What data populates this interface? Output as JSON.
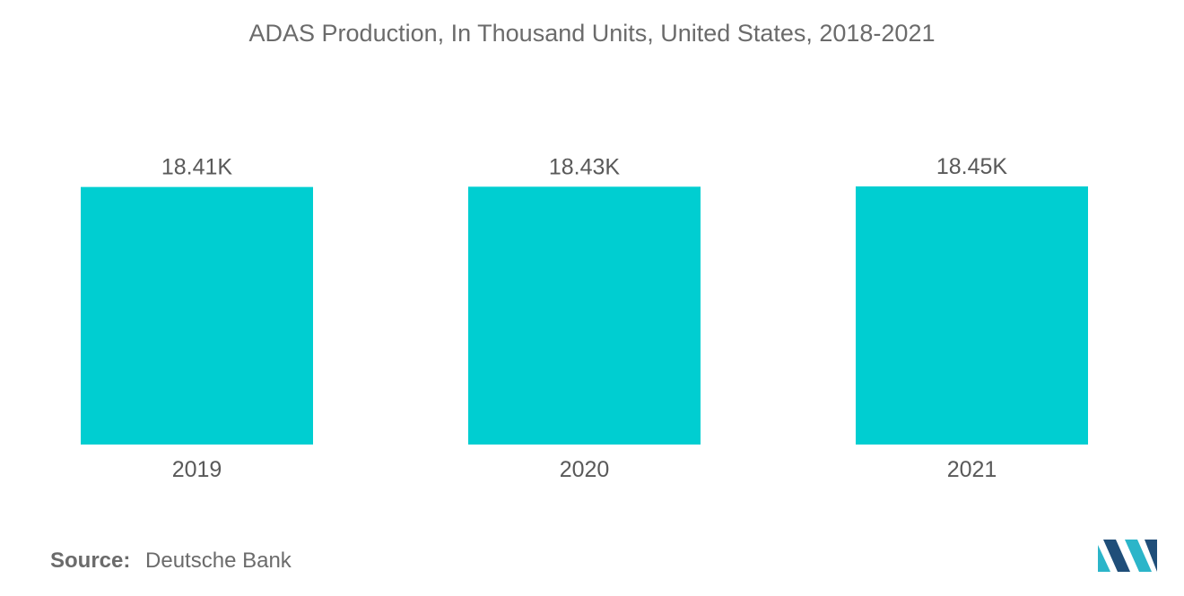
{
  "title": "ADAS Production, In Thousand Units, United States, 2018-2021",
  "chart_data": {
    "type": "bar",
    "title": "ADAS Production, In Thousand Units, United States, 2018-2021",
    "categories": [
      "2019",
      "2020",
      "2021"
    ],
    "values": [
      18.41,
      18.43,
      18.45
    ],
    "data_labels": [
      "18.41K",
      "18.43K",
      "18.45K"
    ],
    "xlabel": "",
    "ylabel": "",
    "grid": false,
    "legend": "none",
    "bar_color": "#00CED1"
  },
  "source": {
    "label": "Source:",
    "value": "Deutsche Bank"
  },
  "colors": {
    "bar": "#00CED1",
    "text": "#595959",
    "logo_dark": "#1f4e79",
    "logo_light": "#2bb5c9"
  }
}
